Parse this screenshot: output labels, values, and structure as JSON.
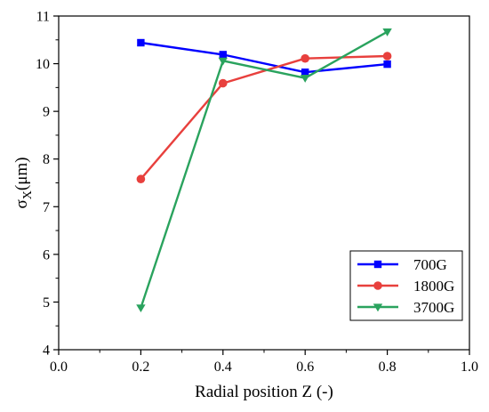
{
  "chart_data": {
    "type": "line",
    "title": "",
    "xlabel": "Radial position Z (-)",
    "ylabel": {
      "symbol": "σ",
      "subscript": "X",
      "unit": "(μm)"
    },
    "xlim": [
      0.0,
      1.0
    ],
    "ylim": [
      4,
      11
    ],
    "xticks": [
      "0.0",
      "0.2",
      "0.4",
      "0.6",
      "0.8",
      "1.0"
    ],
    "yticks": [
      "4",
      "5",
      "6",
      "7",
      "8",
      "9",
      "10",
      "11"
    ],
    "grid": false,
    "legend_position": "bottom-right",
    "series": [
      {
        "name": "700G",
        "color": "#0000ff",
        "marker": "square",
        "x": [
          0.2,
          0.4,
          0.6,
          0.8
        ],
        "y": [
          10.44,
          10.19,
          9.82,
          9.99
        ]
      },
      {
        "name": "1800G",
        "color": "#e8403d",
        "marker": "circle",
        "x": [
          0.2,
          0.4,
          0.6,
          0.8
        ],
        "y": [
          7.58,
          9.59,
          10.11,
          10.16
        ]
      },
      {
        "name": "3700G",
        "color": "#2aa35e",
        "marker": "triangle-down",
        "x": [
          0.2,
          0.4,
          0.6,
          0.8
        ],
        "y": [
          4.88,
          10.06,
          9.7,
          10.67
        ]
      }
    ]
  }
}
